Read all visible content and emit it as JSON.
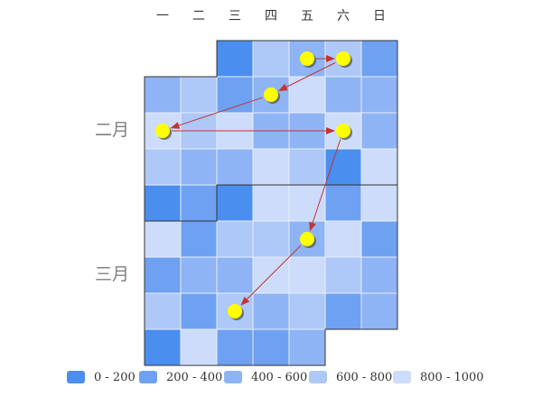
{
  "chart_data": {
    "type": "heatmap",
    "title": "",
    "weekday_labels": [
      "一",
      "二",
      "三",
      "四",
      "五",
      "六",
      "日"
    ],
    "month_labels": [
      "二月",
      "三月"
    ],
    "legend": [
      {
        "label": "0 - 200",
        "color": "#4a8ef0"
      },
      {
        "label": "200 - 400",
        "color": "#6ea1f2"
      },
      {
        "label": "400 - 600",
        "color": "#8eb4f5"
      },
      {
        "label": "600 - 800",
        "color": "#aec8f7"
      },
      {
        "label": "800 - 1000",
        "color": "#ccdcfa"
      }
    ],
    "cells": [
      {
        "week": 0,
        "day": 2,
        "bin": 0
      },
      {
        "week": 0,
        "day": 3,
        "bin": 3
      },
      {
        "week": 0,
        "day": 4,
        "bin": 2
      },
      {
        "week": 0,
        "day": 5,
        "bin": 3
      },
      {
        "week": 0,
        "day": 6,
        "bin": 1
      },
      {
        "week": 1,
        "day": 0,
        "bin": 2
      },
      {
        "week": 1,
        "day": 1,
        "bin": 3
      },
      {
        "week": 1,
        "day": 2,
        "bin": 1
      },
      {
        "week": 1,
        "day": 3,
        "bin": 2
      },
      {
        "week": 1,
        "day": 4,
        "bin": 4
      },
      {
        "week": 1,
        "day": 5,
        "bin": 2
      },
      {
        "week": 1,
        "day": 6,
        "bin": 2
      },
      {
        "week": 2,
        "day": 0,
        "bin": 4
      },
      {
        "week": 2,
        "day": 1,
        "bin": 3
      },
      {
        "week": 2,
        "day": 2,
        "bin": 4
      },
      {
        "week": 2,
        "day": 3,
        "bin": 2
      },
      {
        "week": 2,
        "day": 4,
        "bin": 2
      },
      {
        "week": 2,
        "day": 5,
        "bin": 4
      },
      {
        "week": 2,
        "day": 6,
        "bin": 2
      },
      {
        "week": 3,
        "day": 0,
        "bin": 3
      },
      {
        "week": 3,
        "day": 1,
        "bin": 2
      },
      {
        "week": 3,
        "day": 2,
        "bin": 2
      },
      {
        "week": 3,
        "day": 3,
        "bin": 4
      },
      {
        "week": 3,
        "day": 4,
        "bin": 3
      },
      {
        "week": 3,
        "day": 5,
        "bin": 0
      },
      {
        "week": 3,
        "day": 6,
        "bin": 4
      },
      {
        "week": 4,
        "day": 0,
        "bin": 0
      },
      {
        "week": 4,
        "day": 1,
        "bin": 1
      },
      {
        "week": 4,
        "day": 2,
        "bin": 0
      },
      {
        "week": 4,
        "day": 3,
        "bin": 4
      },
      {
        "week": 4,
        "day": 4,
        "bin": 4
      },
      {
        "week": 4,
        "day": 5,
        "bin": 1
      },
      {
        "week": 4,
        "day": 6,
        "bin": 4
      },
      {
        "week": 5,
        "day": 0,
        "bin": 4
      },
      {
        "week": 5,
        "day": 1,
        "bin": 1
      },
      {
        "week": 5,
        "day": 2,
        "bin": 3
      },
      {
        "week": 5,
        "day": 3,
        "bin": 3
      },
      {
        "week": 5,
        "day": 4,
        "bin": 2
      },
      {
        "week": 5,
        "day": 5,
        "bin": 4
      },
      {
        "week": 5,
        "day": 6,
        "bin": 1
      },
      {
        "week": 6,
        "day": 0,
        "bin": 1
      },
      {
        "week": 6,
        "day": 1,
        "bin": 2
      },
      {
        "week": 6,
        "day": 2,
        "bin": 2
      },
      {
        "week": 6,
        "day": 3,
        "bin": 4
      },
      {
        "week": 6,
        "day": 4,
        "bin": 4
      },
      {
        "week": 6,
        "day": 5,
        "bin": 3
      },
      {
        "week": 6,
        "day": 6,
        "bin": 2
      },
      {
        "week": 7,
        "day": 0,
        "bin": 3
      },
      {
        "week": 7,
        "day": 1,
        "bin": 1
      },
      {
        "week": 7,
        "day": 2,
        "bin": 3
      },
      {
        "week": 7,
        "day": 3,
        "bin": 2
      },
      {
        "week": 7,
        "day": 4,
        "bin": 3
      },
      {
        "week": 7,
        "day": 5,
        "bin": 1
      },
      {
        "week": 7,
        "day": 6,
        "bin": 2
      },
      {
        "week": 8,
        "day": 0,
        "bin": 0
      },
      {
        "week": 8,
        "day": 1,
        "bin": 4
      },
      {
        "week": 8,
        "day": 2,
        "bin": 1
      },
      {
        "week": 8,
        "day": 3,
        "bin": 1
      },
      {
        "week": 8,
        "day": 4,
        "bin": 2
      }
    ],
    "path": [
      {
        "week": 0,
        "day": 4
      },
      {
        "week": 0,
        "day": 5
      },
      {
        "week": 1,
        "day": 3
      },
      {
        "week": 2,
        "day": 0
      },
      {
        "week": 2,
        "day": 5
      },
      {
        "week": 5,
        "day": 4
      },
      {
        "week": 7,
        "day": 2
      }
    ],
    "marker_color": "#ffff00",
    "arrow_color": "#c23531",
    "cell_border_color": "#e6eefc",
    "outline_color": "#333333"
  }
}
